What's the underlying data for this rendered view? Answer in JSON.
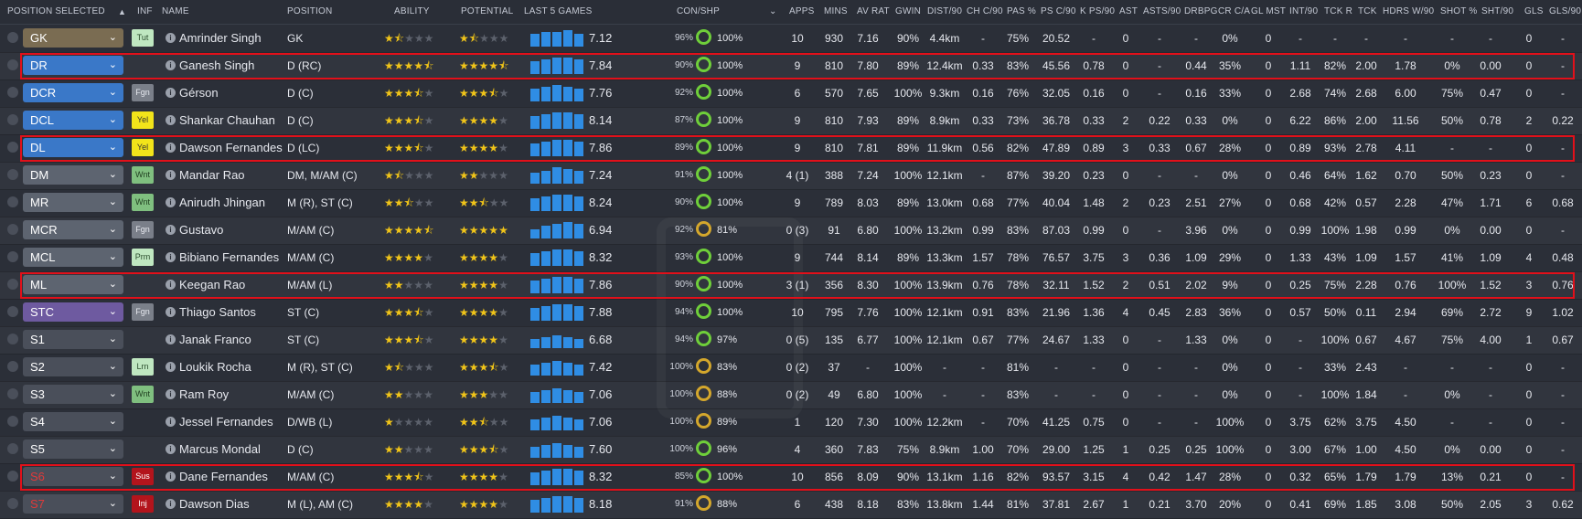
{
  "headers": {
    "pos_selected": "POSITION SELECTED",
    "inf": "INF",
    "name": "NAME",
    "position": "POSITION",
    "ability": "ABILITY",
    "potential": "POTENTIAL",
    "last5": "LAST 5 GAMES",
    "conshp": "CON/SHP",
    "apps": "APPS",
    "mins": "MINS",
    "avrat": "AV RAT",
    "gwin": "GWIN",
    "dist": "DIST/90",
    "chc": "CH C/90",
    "pas": "PAS %",
    "psc": "PS C/90",
    "kps": "K PS/90",
    "ast": "AST",
    "asts": "ASTS/90",
    "drbpg": "DRBPG",
    "crca": "CR C/A",
    "glmst": "GL MST",
    "int": "INT/90",
    "tckr": "TCK R",
    "tck": "TCK",
    "hdrs": "HDRS W/90",
    "shot": "SHOT %",
    "sht": "SHT/90",
    "gls": "GLS",
    "gls90": "GLS/90"
  },
  "colors": {
    "pos_gk": "#7a6c52",
    "pos_def": "#3a78c8",
    "pos_dm": "#5d6470",
    "pos_st": "#6e5aa0",
    "pos_sub": "#4a4f5a",
    "highlight": "#e2101a"
  },
  "players": [
    {
      "pos": "GK",
      "posColor": "pos_gk",
      "badge": "Tut",
      "badgeColor": "#bfe7c0",
      "badgeText": "#2b4d2c",
      "name": "Amrinder Singh",
      "position": "GK",
      "ability": 1.5,
      "potential": 1.5,
      "bars": [
        14,
        16,
        16,
        18,
        14
      ],
      "rating": "7.12",
      "con": "96%",
      "shp": "100%",
      "apps": "10",
      "mins": "930",
      "avrat": "7.16",
      "gwin": "90%",
      "dist": "4.4km",
      "chc": "-",
      "pas": "75%",
      "psc": "20.52",
      "kps": "-",
      "ast": "0",
      "asts": "-",
      "drbpg": "-",
      "crca": "0%",
      "glmst": "0",
      "int": "-",
      "tckr": "-",
      "tck": "-",
      "hdrs": "-",
      "shot": "-",
      "sht": "-",
      "gls": "0",
      "gls90": "-",
      "hl": false
    },
    {
      "pos": "DR",
      "posColor": "pos_def",
      "badge": "",
      "name": "Ganesh Singh",
      "position": "D (RC)",
      "ability": 4.5,
      "potential": 4.5,
      "bars": [
        14,
        16,
        18,
        18,
        16
      ],
      "rating": "7.84",
      "con": "90%",
      "shp": "100%",
      "apps": "9",
      "mins": "810",
      "avrat": "7.80",
      "gwin": "89%",
      "dist": "12.4km",
      "chc": "0.33",
      "pas": "83%",
      "psc": "45.56",
      "kps": "0.78",
      "ast": "0",
      "asts": "-",
      "drbpg": "0.44",
      "crca": "35%",
      "glmst": "0",
      "int": "1.11",
      "tckr": "82%",
      "tck": "2.00",
      "hdrs": "1.78",
      "shot": "0%",
      "sht": "0.00",
      "gls": "0",
      "gls90": "-",
      "hl": true
    },
    {
      "pos": "DCR",
      "posColor": "pos_def",
      "badge": "Fgn",
      "badgeColor": "#7a7f89",
      "badgeText": "#e6e8ee",
      "name": "Gérson",
      "position": "D (C)",
      "ability": 3.5,
      "potential": 3.5,
      "bars": [
        14,
        16,
        18,
        16,
        14
      ],
      "rating": "7.76",
      "con": "92%",
      "shp": "100%",
      "apps": "6",
      "mins": "570",
      "avrat": "7.65",
      "gwin": "100%",
      "dist": "9.3km",
      "chc": "0.16",
      "pas": "76%",
      "psc": "32.05",
      "kps": "0.16",
      "ast": "0",
      "asts": "-",
      "drbpg": "0.16",
      "crca": "33%",
      "glmst": "0",
      "int": "2.68",
      "tckr": "74%",
      "tck": "2.68",
      "hdrs": "6.00",
      "shot": "75%",
      "sht": "0.47",
      "gls": "0",
      "gls90": "-",
      "hl": false
    },
    {
      "pos": "DCL",
      "posColor": "pos_def",
      "badge": "Yel",
      "badgeColor": "#f2e41a",
      "badgeText": "#333",
      "name": "Shankar Chauhan",
      "position": "D (C)",
      "ability": 3.5,
      "potential": 4,
      "bars": [
        14,
        16,
        18,
        18,
        16
      ],
      "rating": "8.14",
      "con": "87%",
      "shp": "100%",
      "apps": "9",
      "mins": "810",
      "avrat": "7.93",
      "gwin": "89%",
      "dist": "8.9km",
      "chc": "0.33",
      "pas": "73%",
      "psc": "36.78",
      "kps": "0.33",
      "ast": "2",
      "asts": "0.22",
      "drbpg": "0.33",
      "crca": "0%",
      "glmst": "0",
      "int": "6.22",
      "tckr": "86%",
      "tck": "2.00",
      "hdrs": "11.56",
      "shot": "50%",
      "sht": "0.78",
      "gls": "2",
      "gls90": "0.22",
      "hl": false
    },
    {
      "pos": "DL",
      "posColor": "pos_def",
      "badge": "Yel",
      "badgeColor": "#f2e41a",
      "badgeText": "#333",
      "name": "Dawson Fernandes",
      "position": "D (LC)",
      "ability": 3.5,
      "potential": 4,
      "bars": [
        14,
        16,
        18,
        18,
        16
      ],
      "rating": "7.86",
      "con": "89%",
      "shp": "100%",
      "apps": "9",
      "mins": "810",
      "avrat": "7.81",
      "gwin": "89%",
      "dist": "11.9km",
      "chc": "0.56",
      "pas": "82%",
      "psc": "47.89",
      "kps": "0.89",
      "ast": "3",
      "asts": "0.33",
      "drbpg": "0.67",
      "crca": "28%",
      "glmst": "0",
      "int": "0.89",
      "tckr": "93%",
      "tck": "2.78",
      "hdrs": "4.11",
      "shot": "-",
      "sht": "-",
      "gls": "0",
      "gls90": "-",
      "hl": true
    },
    {
      "pos": "DM",
      "posColor": "pos_dm",
      "badge": "Wnt",
      "badgeColor": "#7fbf7f",
      "badgeText": "#1f3d1f",
      "name": "Mandar Rao",
      "position": "DM, M/AM (C)",
      "ability": 1.5,
      "potential": 2,
      "bars": [
        12,
        14,
        18,
        16,
        14
      ],
      "rating": "7.24",
      "con": "91%",
      "shp": "100%",
      "apps": "4 (1)",
      "mins": "388",
      "avrat": "7.24",
      "gwin": "100%",
      "dist": "12.1km",
      "chc": "-",
      "pas": "87%",
      "psc": "39.20",
      "kps": "0.23",
      "ast": "0",
      "asts": "-",
      "drbpg": "-",
      "crca": "0%",
      "glmst": "0",
      "int": "0.46",
      "tckr": "64%",
      "tck": "1.62",
      "hdrs": "0.70",
      "shot": "50%",
      "sht": "0.23",
      "gls": "0",
      "gls90": "-",
      "hl": false
    },
    {
      "pos": "MR",
      "posColor": "pos_dm",
      "badge": "Wnt",
      "badgeColor": "#7fbf7f",
      "badgeText": "#1f3d1f",
      "name": "Anirudh Jhingan",
      "position": "M (R), ST (C)",
      "ability": 2.5,
      "potential": 2.5,
      "bars": [
        14,
        16,
        18,
        18,
        16
      ],
      "rating": "8.24",
      "con": "90%",
      "shp": "100%",
      "apps": "9",
      "mins": "789",
      "avrat": "8.03",
      "gwin": "89%",
      "dist": "13.0km",
      "chc": "0.68",
      "pas": "77%",
      "psc": "40.04",
      "kps": "1.48",
      "ast": "2",
      "asts": "0.23",
      "drbpg": "2.51",
      "crca": "27%",
      "glmst": "0",
      "int": "0.68",
      "tckr": "42%",
      "tck": "0.57",
      "hdrs": "2.28",
      "shot": "47%",
      "sht": "1.71",
      "gls": "6",
      "gls90": "0.68",
      "hl": false
    },
    {
      "pos": "MCR",
      "posColor": "pos_dm",
      "badge": "Fgn",
      "badgeColor": "#7a7f89",
      "badgeText": "#e6e8ee",
      "name": "Gustavo",
      "position": "M/AM (C)",
      "ability": 4.5,
      "potential": 5,
      "bars": [
        10,
        14,
        16,
        18,
        16
      ],
      "rating": "6.94",
      "con": "92%",
      "shp": "81%",
      "shpLo": true,
      "apps": "0 (3)",
      "mins": "91",
      "avrat": "6.80",
      "gwin": "100%",
      "dist": "13.2km",
      "chc": "0.99",
      "pas": "83%",
      "psc": "87.03",
      "kps": "0.99",
      "ast": "0",
      "asts": "-",
      "drbpg": "3.96",
      "crca": "0%",
      "glmst": "0",
      "int": "0.99",
      "tckr": "100%",
      "tck": "1.98",
      "hdrs": "0.99",
      "shot": "0%",
      "sht": "0.00",
      "gls": "0",
      "gls90": "-",
      "hl": false
    },
    {
      "pos": "MCL",
      "posColor": "pos_dm",
      "badge": "Prm",
      "badgeColor": "#bfe7c0",
      "badgeText": "#2b4d2c",
      "name": "Bibiano Fernandes",
      "position": "M/AM (C)",
      "ability": 4,
      "potential": 4,
      "bars": [
        14,
        16,
        18,
        18,
        16
      ],
      "rating": "8.32",
      "con": "93%",
      "shp": "100%",
      "apps": "9",
      "mins": "744",
      "avrat": "8.14",
      "gwin": "89%",
      "dist": "13.3km",
      "chc": "1.57",
      "pas": "78%",
      "psc": "76.57",
      "kps": "3.75",
      "ast": "3",
      "asts": "0.36",
      "drbpg": "1.09",
      "crca": "29%",
      "glmst": "0",
      "int": "1.33",
      "tckr": "43%",
      "tck": "1.09",
      "hdrs": "1.57",
      "shot": "41%",
      "sht": "1.09",
      "gls": "4",
      "gls90": "0.48",
      "hl": false
    },
    {
      "pos": "ML",
      "posColor": "pos_dm",
      "badge": "",
      "name": "Keegan Rao",
      "position": "M/AM (L)",
      "ability": 2,
      "potential": 4,
      "bars": [
        14,
        16,
        18,
        18,
        16
      ],
      "rating": "7.86",
      "con": "90%",
      "shp": "100%",
      "apps": "3 (1)",
      "mins": "356",
      "avrat": "8.30",
      "gwin": "100%",
      "dist": "13.9km",
      "chc": "0.76",
      "pas": "78%",
      "psc": "32.11",
      "kps": "1.52",
      "ast": "2",
      "asts": "0.51",
      "drbpg": "2.02",
      "crca": "9%",
      "glmst": "0",
      "int": "0.25",
      "tckr": "75%",
      "tck": "2.28",
      "hdrs": "0.76",
      "shot": "100%",
      "sht": "1.52",
      "gls": "3",
      "gls90": "0.76",
      "hl": true
    },
    {
      "pos": "STC",
      "posColor": "pos_st",
      "badge": "Fgn",
      "badgeColor": "#7a7f89",
      "badgeText": "#e6e8ee",
      "name": "Thiago Santos",
      "position": "ST (C)",
      "ability": 3.5,
      "potential": 4,
      "bars": [
        14,
        16,
        18,
        18,
        16
      ],
      "rating": "7.88",
      "con": "94%",
      "shp": "100%",
      "apps": "10",
      "mins": "795",
      "avrat": "7.76",
      "gwin": "100%",
      "dist": "12.1km",
      "chc": "0.91",
      "pas": "83%",
      "psc": "21.96",
      "kps": "1.36",
      "ast": "4",
      "asts": "0.45",
      "drbpg": "2.83",
      "crca": "36%",
      "glmst": "0",
      "int": "0.57",
      "tckr": "50%",
      "tck": "0.11",
      "hdrs": "2.94",
      "shot": "69%",
      "sht": "2.72",
      "gls": "9",
      "gls90": "1.02",
      "hl": false
    },
    {
      "pos": "S1",
      "posColor": "pos_sub",
      "badge": "",
      "name": "Janak Franco",
      "position": "ST (C)",
      "ability": 3.5,
      "potential": 4,
      "bars": [
        10,
        12,
        14,
        12,
        10
      ],
      "rating": "6.68",
      "con": "94%",
      "shp": "97%",
      "apps": "0 (5)",
      "mins": "135",
      "avrat": "6.77",
      "gwin": "100%",
      "dist": "12.1km",
      "chc": "0.67",
      "pas": "77%",
      "psc": "24.67",
      "kps": "1.33",
      "ast": "0",
      "asts": "-",
      "drbpg": "1.33",
      "crca": "0%",
      "glmst": "0",
      "int": "-",
      "tckr": "100%",
      "tck": "0.67",
      "hdrs": "4.67",
      "shot": "75%",
      "sht": "4.00",
      "gls": "1",
      "gls90": "0.67",
      "hl": false
    },
    {
      "pos": "S2",
      "posColor": "pos_sub",
      "badge": "Lrn",
      "badgeColor": "#bfe7c0",
      "badgeText": "#2b4d2c",
      "name": "Loukik Rocha",
      "position": "M (R), ST (C)",
      "ability": 1.5,
      "potential": 3.5,
      "bars": [
        12,
        14,
        16,
        14,
        12
      ],
      "rating": "7.42",
      "con": "100%",
      "shp": "83%",
      "shpLo": true,
      "apps": "0 (2)",
      "mins": "37",
      "avrat": "-",
      "gwin": "100%",
      "dist": "-",
      "chc": "-",
      "pas": "81%",
      "psc": "-",
      "kps": "-",
      "ast": "0",
      "asts": "-",
      "drbpg": "-",
      "crca": "0%",
      "glmst": "0",
      "int": "-",
      "tckr": "33%",
      "tck": "2.43",
      "hdrs": "-",
      "shot": "-",
      "sht": "-",
      "gls": "0",
      "gls90": "-",
      "hl": false
    },
    {
      "pos": "S3",
      "posColor": "pos_sub",
      "badge": "Wnt",
      "badgeColor": "#7fbf7f",
      "badgeText": "#1f3d1f",
      "name": "Ram Roy",
      "position": "M/AM (C)",
      "ability": 2,
      "potential": 3,
      "bars": [
        12,
        14,
        16,
        14,
        12
      ],
      "rating": "7.06",
      "con": "100%",
      "shp": "88%",
      "shpLo": true,
      "apps": "0 (2)",
      "mins": "49",
      "avrat": "6.80",
      "gwin": "100%",
      "dist": "-",
      "chc": "-",
      "pas": "83%",
      "psc": "-",
      "kps": "-",
      "ast": "0",
      "asts": "-",
      "drbpg": "-",
      "crca": "0%",
      "glmst": "0",
      "int": "-",
      "tckr": "100%",
      "tck": "1.84",
      "hdrs": "-",
      "shot": "0%",
      "sht": "-",
      "gls": "0",
      "gls90": "-",
      "hl": false
    },
    {
      "pos": "S4",
      "posColor": "pos_sub",
      "badge": "",
      "name": "Jessel Fernandes",
      "position": "D/WB (L)",
      "ability": 1,
      "potential": 2.5,
      "bars": [
        12,
        14,
        16,
        14,
        12
      ],
      "rating": "7.06",
      "con": "100%",
      "shp": "89%",
      "shpLo": true,
      "apps": "1",
      "mins": "120",
      "avrat": "7.30",
      "gwin": "100%",
      "dist": "12.2km",
      "chc": "-",
      "pas": "70%",
      "psc": "41.25",
      "kps": "0.75",
      "ast": "0",
      "asts": "-",
      "drbpg": "-",
      "crca": "100%",
      "glmst": "0",
      "int": "3.75",
      "tckr": "62%",
      "tck": "3.75",
      "hdrs": "4.50",
      "shot": "-",
      "sht": "-",
      "gls": "0",
      "gls90": "-",
      "hl": false
    },
    {
      "pos": "S5",
      "posColor": "pos_sub",
      "badge": "",
      "name": "Marcus Mondal",
      "position": "D (C)",
      "ability": 2,
      "potential": 3.5,
      "bars": [
        12,
        14,
        16,
        14,
        12
      ],
      "rating": "7.60",
      "con": "100%",
      "shp": "96%",
      "apps": "4",
      "mins": "360",
      "avrat": "7.83",
      "gwin": "75%",
      "dist": "8.9km",
      "chc": "1.00",
      "pas": "70%",
      "psc": "29.00",
      "kps": "1.25",
      "ast": "1",
      "asts": "0.25",
      "drbpg": "0.25",
      "crca": "100%",
      "glmst": "0",
      "int": "3.00",
      "tckr": "67%",
      "tck": "1.00",
      "hdrs": "4.50",
      "shot": "0%",
      "sht": "0.00",
      "gls": "0",
      "gls90": "-",
      "hl": false
    },
    {
      "pos": "S6",
      "posColor": "pos_sub",
      "posRed": true,
      "badge": "Sus",
      "badgeColor": "#b3141c",
      "badgeText": "#fff",
      "name": "Dane Fernandes",
      "position": "M/AM (C)",
      "ability": 3.5,
      "potential": 4,
      "bars": [
        14,
        16,
        18,
        18,
        16
      ],
      "rating": "8.32",
      "con": "85%",
      "shp": "100%",
      "apps": "10",
      "mins": "856",
      "avrat": "8.09",
      "gwin": "90%",
      "dist": "13.1km",
      "chc": "1.16",
      "pas": "82%",
      "psc": "93.57",
      "kps": "3.15",
      "ast": "4",
      "asts": "0.42",
      "drbpg": "1.47",
      "crca": "28%",
      "glmst": "0",
      "int": "0.32",
      "tckr": "65%",
      "tck": "1.79",
      "hdrs": "1.79",
      "shot": "13%",
      "sht": "0.21",
      "gls": "0",
      "gls90": "-",
      "hl": true
    },
    {
      "pos": "S7",
      "posColor": "pos_sub",
      "posRed": true,
      "badge": "Inj",
      "badgeColor": "#b3141c",
      "badgeText": "#fff",
      "name": "Dawson Dias",
      "position": "M (L), AM (C)",
      "ability": 4,
      "potential": 4,
      "bars": [
        14,
        16,
        18,
        18,
        16
      ],
      "rating": "8.18",
      "con": "91%",
      "shp": "88%",
      "shpLo": true,
      "apps": "6",
      "mins": "438",
      "avrat": "8.18",
      "gwin": "83%",
      "dist": "13.8km",
      "chc": "1.44",
      "pas": "81%",
      "psc": "37.81",
      "kps": "2.67",
      "ast": "1",
      "asts": "0.21",
      "drbpg": "3.70",
      "crca": "20%",
      "glmst": "0",
      "int": "0.41",
      "tckr": "69%",
      "tck": "1.85",
      "hdrs": "3.08",
      "shot": "50%",
      "sht": "2.05",
      "gls": "3",
      "gls90": "0.62",
      "hl": false
    }
  ]
}
